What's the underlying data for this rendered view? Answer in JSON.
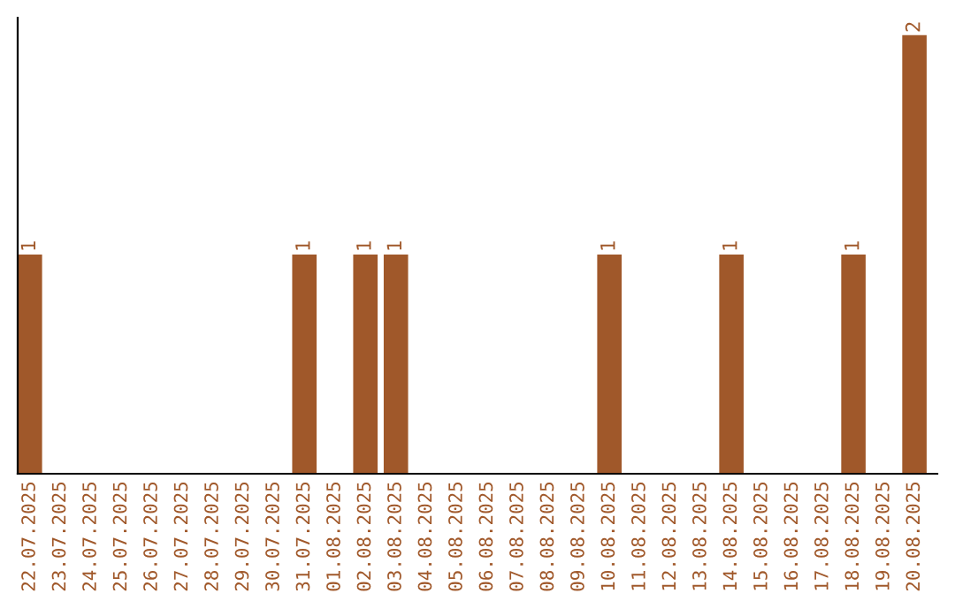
{
  "chart_data": {
    "type": "bar",
    "categories": [
      "22.07.2025",
      "23.07.2025",
      "24.07.2025",
      "25.07.2025",
      "26.07.2025",
      "27.07.2025",
      "28.07.2025",
      "29.07.2025",
      "30.07.2025",
      "31.07.2025",
      "01.08.2025",
      "02.08.2025",
      "03.08.2025",
      "04.08.2025",
      "05.08.2025",
      "06.08.2025",
      "07.08.2025",
      "08.08.2025",
      "09.08.2025",
      "10.08.2025",
      "11.08.2025",
      "12.08.2025",
      "13.08.2025",
      "14.08.2025",
      "15.08.2025",
      "16.08.2025",
      "17.08.2025",
      "18.08.2025",
      "19.08.2025",
      "20.08.2025"
    ],
    "values": [
      1,
      0,
      0,
      0,
      0,
      0,
      0,
      0,
      0,
      1,
      0,
      1,
      1,
      0,
      0,
      0,
      0,
      0,
      0,
      1,
      0,
      0,
      0,
      1,
      0,
      0,
      0,
      1,
      0,
      2
    ],
    "value_labels": [
      "1",
      null,
      null,
      null,
      null,
      null,
      null,
      null,
      null,
      "1",
      null,
      "1",
      "1",
      null,
      null,
      null,
      null,
      null,
      null,
      "1",
      null,
      null,
      null,
      "1",
      null,
      null,
      null,
      "1",
      null,
      "2"
    ],
    "color": "#a0582a",
    "grid": false,
    "legend": false
  }
}
